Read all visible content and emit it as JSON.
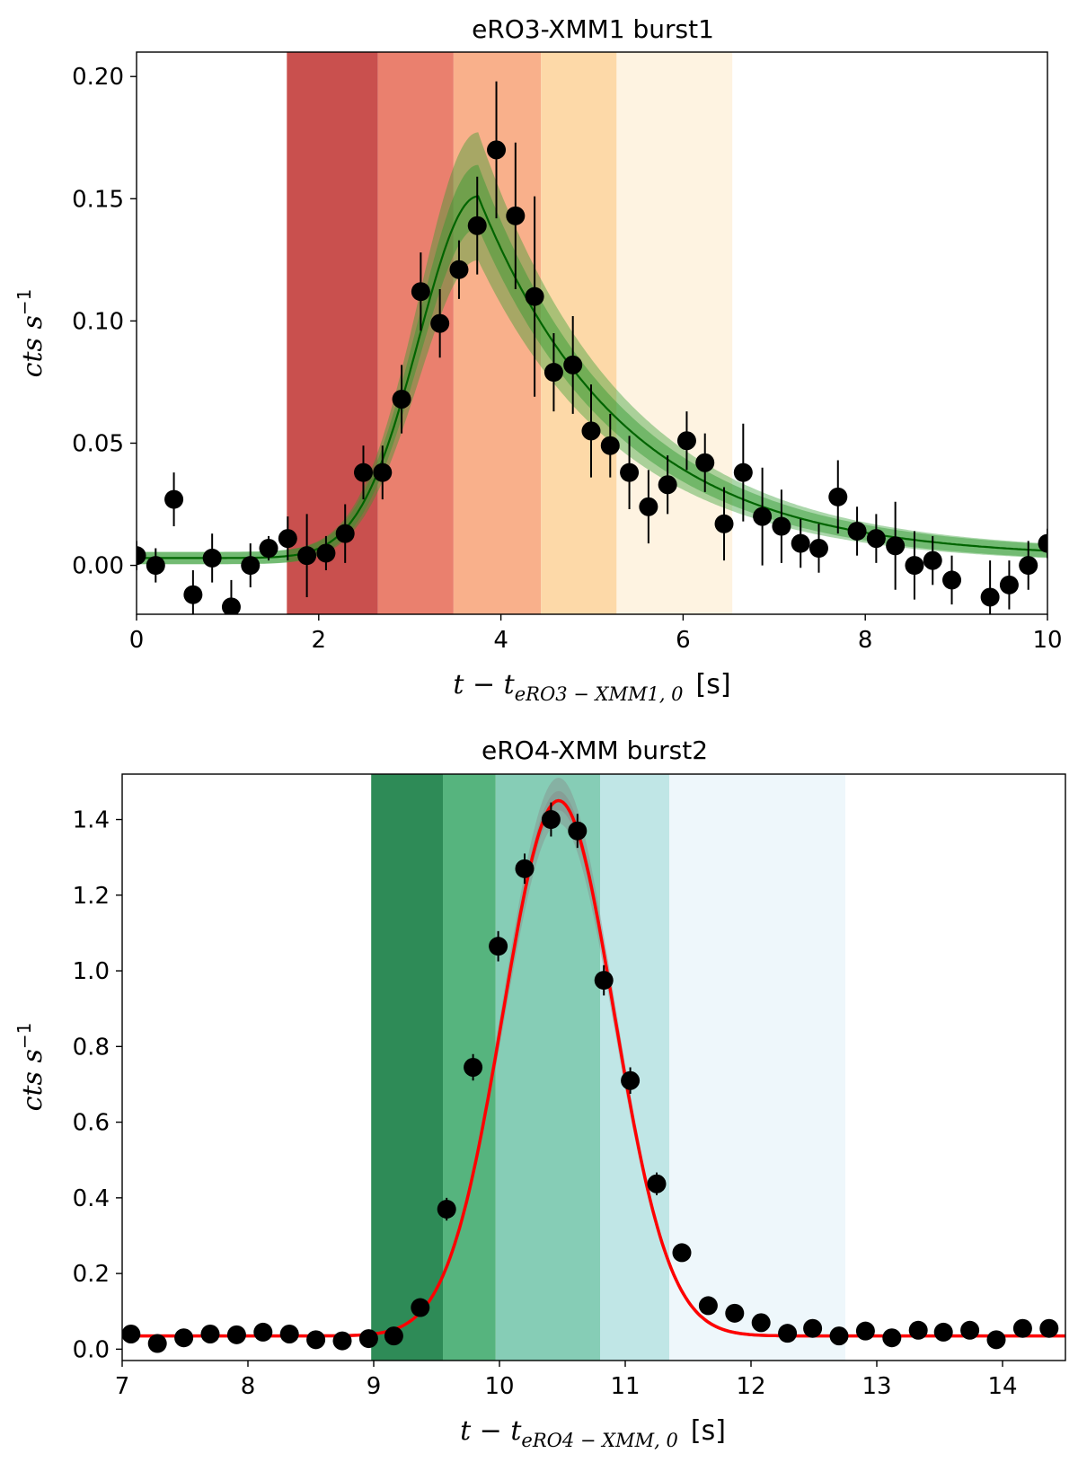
{
  "chart_data": [
    {
      "id": "top",
      "type": "scatter",
      "title": "eRO3-XMM1 burst1",
      "xlabel": "t − t",
      "xlabel_sub": "eRO3 − XMM1, 0",
      "xlabel_unit": "[s]",
      "ylabel": "cts s",
      "ylabel_sup": "−1",
      "xlim": [
        0,
        10
      ],
      "ylim": [
        -0.02,
        0.21
      ],
      "xticks": [
        0,
        2,
        4,
        6,
        8,
        10
      ],
      "xtick_labels": [
        "0",
        "2",
        "4",
        "6",
        "8",
        "10"
      ],
      "yticks": [
        0.0,
        0.05,
        0.1,
        0.15,
        0.2
      ],
      "ytick_labels": [
        "0.00",
        "0.05",
        "0.10",
        "0.15",
        "0.20"
      ],
      "bands": [
        {
          "x0": 1.65,
          "x1": 2.65,
          "color": "#c9504e"
        },
        {
          "x0": 2.65,
          "x1": 3.48,
          "color": "#ea806e"
        },
        {
          "x0": 3.48,
          "x1": 4.44,
          "color": "#f9b08b"
        },
        {
          "x0": 4.44,
          "x1": 5.27,
          "color": "#fdd9a8"
        },
        {
          "x0": 5.27,
          "x1": 6.54,
          "color": "#fef3e1"
        }
      ],
      "model": {
        "type": "frede",
        "baseline": 0.003,
        "peak_time": 3.75,
        "peak_rate": 0.148,
        "rise": 0.65,
        "decay": 1.6,
        "line_color": "#006400",
        "band_color": "#2e9a2e"
      },
      "points": {
        "x": [
          0.0,
          0.21,
          0.41,
          0.62,
          0.83,
          1.04,
          1.25,
          1.45,
          1.66,
          1.87,
          2.08,
          2.29,
          2.49,
          2.7,
          2.91,
          3.12,
          3.33,
          3.54,
          3.74,
          3.95,
          4.16,
          4.37,
          4.58,
          4.79,
          4.99,
          5.2,
          5.41,
          5.62,
          5.83,
          6.04,
          6.24,
          6.45,
          6.66,
          6.87,
          7.08,
          7.29,
          7.49,
          7.7,
          7.91,
          8.12,
          8.33,
          8.54,
          8.74,
          8.95,
          9.16,
          9.37,
          9.58,
          9.79,
          10.0
        ],
        "y": [
          0.004,
          0.0,
          0.027,
          -0.012,
          0.003,
          -0.017,
          0.0,
          0.007,
          0.011,
          0.004,
          0.005,
          0.013,
          0.038,
          0.038,
          0.068,
          0.112,
          0.099,
          0.121,
          0.139,
          0.17,
          0.143,
          0.11,
          0.079,
          0.082,
          0.055,
          0.049,
          0.038,
          0.024,
          0.033,
          0.051,
          0.042,
          0.017,
          0.038,
          0.02,
          0.016,
          0.009,
          0.007,
          0.028,
          0.014,
          0.011,
          0.008,
          0.0,
          0.002,
          -0.006,
          null,
          -0.013,
          -0.008,
          0.0,
          0.009
        ],
        "err": [
          0.006,
          0.007,
          0.011,
          0.01,
          0.01,
          0.011,
          0.009,
          0.005,
          0.009,
          0.017,
          0.007,
          0.012,
          0.011,
          0.011,
          0.014,
          0.016,
          0.014,
          0.012,
          0.02,
          0.028,
          0.03,
          0.041,
          0.016,
          0.02,
          0.019,
          0.013,
          0.015,
          0.015,
          0.012,
          0.012,
          0.012,
          0.015,
          0.02,
          0.02,
          0.015,
          0.01,
          0.01,
          0.015,
          0.01,
          0.01,
          0.018,
          0.014,
          0.01,
          0.01,
          null,
          0.015,
          0.01,
          0.01,
          0.006
        ]
      }
    },
    {
      "id": "bottom",
      "type": "scatter",
      "title": "eRO4-XMM burst2",
      "xlabel": "t − t",
      "xlabel_sub": "eRO4 − XMM, 0",
      "xlabel_unit": "[s]",
      "ylabel": "cts s",
      "ylabel_sup": "−1",
      "xlim": [
        7,
        14.5
      ],
      "ylim": [
        -0.03,
        1.52
      ],
      "xticks": [
        7,
        8,
        9,
        10,
        11,
        12,
        13,
        14
      ],
      "xtick_labels": [
        "7",
        "8",
        "9",
        "10",
        "11",
        "12",
        "13",
        "14"
      ],
      "yticks": [
        0.0,
        0.2,
        0.4,
        0.6,
        0.8,
        1.0,
        1.2,
        1.4
      ],
      "ytick_labels": [
        "0.0",
        "0.2",
        "0.4",
        "0.6",
        "0.8",
        "1.0",
        "1.2",
        "1.4"
      ],
      "bands": [
        {
          "x0": 8.98,
          "x1": 9.55,
          "color": "#2e8b57"
        },
        {
          "x0": 9.55,
          "x1": 9.97,
          "color": "#56b47e"
        },
        {
          "x0": 9.97,
          "x1": 10.8,
          "color": "#86cdb6"
        },
        {
          "x0": 10.8,
          "x1": 11.35,
          "color": "#c0e6e6"
        },
        {
          "x0": 11.35,
          "x1": 12.75,
          "color": "#eef7fb"
        }
      ],
      "model": {
        "type": "gauss",
        "baseline": 0.035,
        "center": 10.47,
        "amp": 1.415,
        "sigma": 0.44,
        "line_color": "#ff0000",
        "band_color": "#888888"
      },
      "points": {
        "x": [
          7.07,
          7.28,
          7.49,
          7.7,
          7.91,
          8.12,
          8.33,
          8.54,
          8.75,
          8.96,
          9.16,
          9.37,
          9.58,
          9.79,
          9.99,
          10.2,
          10.41,
          10.62,
          10.83,
          11.04,
          11.25,
          11.45,
          11.66,
          11.87,
          12.08,
          12.29,
          12.49,
          12.7,
          12.91,
          13.12,
          13.33,
          13.53,
          13.74,
          13.95,
          14.16,
          14.37
        ],
        "y": [
          0.04,
          0.015,
          0.03,
          0.04,
          0.038,
          0.045,
          0.04,
          0.025,
          0.022,
          0.028,
          0.035,
          0.11,
          0.37,
          0.745,
          1.065,
          1.27,
          1.4,
          1.37,
          0.975,
          0.71,
          0.437,
          0.255,
          0.115,
          0.095,
          0.07,
          0.042,
          0.055,
          0.035,
          0.048,
          0.03,
          0.05,
          0.045,
          0.05,
          0.025,
          0.055,
          0.055
        ],
        "err": [
          0.01,
          0.01,
          0.01,
          0.01,
          0.01,
          0.01,
          0.01,
          0.01,
          0.01,
          0.01,
          0.01,
          0.02,
          0.03,
          0.035,
          0.04,
          0.04,
          0.045,
          0.045,
          0.04,
          0.035,
          0.03,
          0.02,
          0.015,
          0.015,
          0.01,
          0.01,
          0.01,
          0.01,
          0.01,
          0.01,
          0.01,
          0.01,
          0.01,
          0.01,
          0.01,
          0.01
        ]
      }
    }
  ]
}
